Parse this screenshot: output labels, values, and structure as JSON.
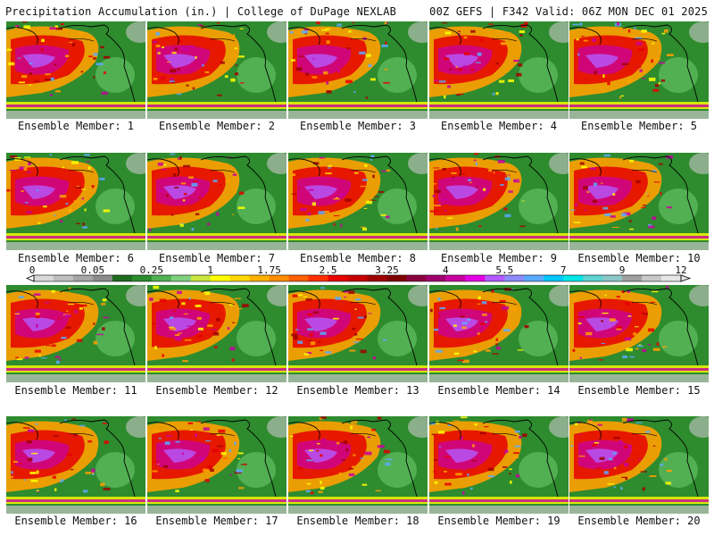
{
  "header": {
    "title": "Precipitation Accumulation (in.) | College of DuPage NEXLAB",
    "run_info": "00Z GEFS | F342 Valid: 06Z MON DEC 01 2025"
  },
  "panels": [
    {
      "label": "Ensemble Member: 1"
    },
    {
      "label": "Ensemble Member: 2"
    },
    {
      "label": "Ensemble Member: 3"
    },
    {
      "label": "Ensemble Member: 4"
    },
    {
      "label": "Ensemble Member: 5"
    },
    {
      "label": "Ensemble Member: 6"
    },
    {
      "label": "Ensemble Member: 7"
    },
    {
      "label": "Ensemble Member: 8"
    },
    {
      "label": "Ensemble Member: 9"
    },
    {
      "label": "Ensemble Member: 10"
    },
    {
      "label": "Ensemble Member: 11"
    },
    {
      "label": "Ensemble Member: 12"
    },
    {
      "label": "Ensemble Member: 13"
    },
    {
      "label": "Ensemble Member: 14"
    },
    {
      "label": "Ensemble Member: 15"
    },
    {
      "label": "Ensemble Member: 16"
    },
    {
      "label": "Ensemble Member: 17"
    },
    {
      "label": "Ensemble Member: 18"
    },
    {
      "label": "Ensemble Member: 19"
    },
    {
      "label": "Ensemble Member: 20"
    }
  ],
  "colorbar": {
    "tick_labels": [
      "0",
      "0.05",
      "0.25",
      "1",
      "1.75",
      "2.5",
      "3.25",
      "4",
      "5.5",
      "7",
      "9",
      "12"
    ],
    "colors": [
      "#d9d9d9",
      "#bfbfbf",
      "#a6a6a6",
      "#8c8c8c",
      "#1f6b1f",
      "#2e8b2e",
      "#52b052",
      "#7fd07f",
      "#c8e63c",
      "#ffff00",
      "#ffd700",
      "#ffb000",
      "#ff8c00",
      "#ff6000",
      "#ff3000",
      "#e60000",
      "#c80000",
      "#a00000",
      "#800000",
      "#8b0040",
      "#a0006e",
      "#c800a0",
      "#e600e6",
      "#b45aff",
      "#8c8cff",
      "#5aaaff",
      "#00c8ff",
      "#00e6e6",
      "#5fd2d2",
      "#8cc8c8",
      "#a0a0a0",
      "#c8c8c8",
      "#e6e6e6"
    ]
  },
  "palette": {
    "land_green": "#2e8b2e",
    "dark_green": "#1f6b1f",
    "light_green": "#52b052",
    "yellow": "#ffff00",
    "orange": "#ffa000",
    "red": "#e60000",
    "dark_red": "#a00000",
    "magenta": "#c800a0",
    "violet": "#b45aff",
    "cyan": "#5aaaff",
    "gray": "#c8c8c8"
  }
}
